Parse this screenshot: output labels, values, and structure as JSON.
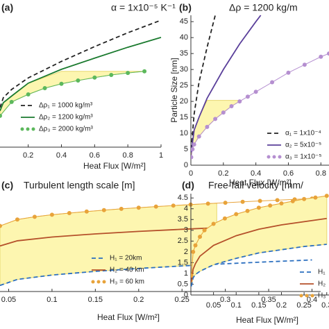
{
  "chart_data": [
    {
      "type": "line",
      "panel": "(a)",
      "title": "α = 1x10⁻⁵ K⁻¹",
      "x_label": "Heat Flux [W/m²]",
      "xlim": [
        0.03,
        1.0
      ],
      "ylim": [
        0,
        40
      ],
      "xticks": [
        0.2,
        0.4,
        0.6,
        0.8,
        1
      ],
      "yticks": [],
      "series": [
        {
          "name": "Δρ₁ = 1000 kg/m³",
          "color": "#222222",
          "style": "dashed",
          "x": [
            0.03,
            0.05,
            0.1,
            0.2,
            0.4,
            0.6,
            0.8,
            1.0
          ],
          "values": [
            12,
            15,
            17.5,
            21,
            26,
            30.5,
            34.7,
            38.5
          ]
        },
        {
          "name": "Δρ₂ = 1200 kg/m³",
          "color": "#1a7a2e",
          "style": "solid",
          "x": [
            0.03,
            0.05,
            0.1,
            0.2,
            0.4,
            0.6,
            0.8,
            1.0
          ],
          "values": [
            11,
            13.5,
            15.5,
            19.4,
            23.6,
            27,
            30.3,
            33.3
          ]
        },
        {
          "name": "Δρ₃ = 2000 kg/m³",
          "color": "#5cb85c",
          "style": "dotted",
          "x": [
            0.03,
            0.1,
            0.2,
            0.3,
            0.4,
            0.5,
            0.6,
            0.7,
            0.8,
            0.9
          ],
          "values": [
            9.5,
            13.7,
            16,
            17.9,
            19.2,
            20.2,
            21.1,
            21.9,
            22.5,
            23
          ]
        }
      ]
    },
    {
      "type": "line",
      "panel": "(b)",
      "title": "Δρ = 1200 kg/m",
      "x_label": "Heat Flux [W/m²]",
      "y_label": "Particle Size [nm]",
      "xlim": [
        0,
        0.85
      ],
      "ylim": [
        0,
        47
      ],
      "xticks": [
        0,
        0.2,
        0.4,
        0.6,
        0.8
      ],
      "yticks": [
        0,
        5,
        10,
        15,
        20,
        25,
        30,
        35,
        40,
        45
      ],
      "series": [
        {
          "name": "α₁ = 1x10⁻⁴",
          "color": "#222222",
          "style": "dashed",
          "x": [
            0.002,
            0.02,
            0.05,
            0.1,
            0.15
          ],
          "values": [
            5,
            16,
            26,
            37,
            47
          ]
        },
        {
          "name": "α₂ = 5x10⁻⁵",
          "color": "#5a3f9a",
          "style": "solid",
          "x": [
            0.002,
            0.02,
            0.05,
            0.1,
            0.2,
            0.3,
            0.4,
            0.43
          ],
          "values": [
            4,
            11,
            15,
            21,
            30,
            38,
            45,
            47
          ]
        },
        {
          "name": "α₃ = 1x10⁻⁵",
          "color": "#b58fd0",
          "style": "dotted",
          "x": [
            0.002,
            0.01,
            0.02,
            0.05,
            0.1,
            0.15,
            0.2,
            0.25,
            0.3,
            0.35,
            0.4,
            0.5,
            0.6,
            0.7,
            0.8,
            0.85
          ],
          "values": [
            2.5,
            5,
            6.5,
            9,
            12,
            14.5,
            16.5,
            18.5,
            20,
            21.5,
            23,
            26,
            29,
            31.5,
            34,
            35
          ]
        }
      ]
    },
    {
      "type": "line",
      "panel": "(c)",
      "title": "Turbulent length scale [m]",
      "x_label": "Heat Flux [W/m²]",
      "xlim": [
        0.04,
        0.41
      ],
      "ylim": [
        0,
        160
      ],
      "xticks": [
        0.05,
        0.1,
        0.15,
        0.2,
        0.25,
        0.3,
        0.35,
        0.4
      ],
      "yticks": [],
      "series": [
        {
          "name": "H₁ = 20km",
          "color": "#2a6ebf",
          "style": "dashed",
          "x": [
            0.04,
            0.06,
            0.1,
            0.15,
            0.2,
            0.25,
            0.3,
            0.35,
            0.4
          ],
          "values": [
            10,
            19.9,
            27.1,
            33.2,
            38,
            42.1,
            45.7,
            49,
            52
          ]
        },
        {
          "name": "H₂ = 40 km",
          "color": "#b5502a",
          "style": "solid",
          "x": [
            0.04,
            0.06,
            0.1,
            0.15,
            0.2,
            0.25,
            0.3,
            0.35,
            0.4
          ],
          "values": [
            75,
            83.5,
            89.7,
            94.9,
            99,
            102.5,
            105.6,
            108.4,
            111
          ]
        },
        {
          "name": "H₃ = 60 km",
          "color": "#e8a33a",
          "style": "dotted",
          "x": [
            0.04,
            0.06,
            0.08,
            0.1,
            0.12,
            0.14,
            0.16,
            0.18,
            0.2,
            0.22,
            0.24,
            0.26,
            0.28,
            0.3,
            0.32,
            0.34,
            0.36,
            0.38,
            0.4
          ],
          "values": [
            108,
            118.6,
            123,
            126.4,
            129.2,
            131.7,
            134,
            136.1,
            138,
            139.8,
            141.5,
            143.2,
            144.7,
            146.2,
            147.7,
            149.1,
            150.4,
            151.7,
            153
          ]
        }
      ]
    },
    {
      "type": "line",
      "panel": "(d)",
      "title": "Free-fall velocity [mm/",
      "x_label": "Heat Flux [W/m²]",
      "xlim": [
        0,
        0.305
      ],
      "ylim": [
        0,
        4.7
      ],
      "xticks": [
        0.05,
        0.1,
        0.15,
        0.2,
        0.25,
        0.3
      ],
      "yticks": [
        0,
        0.5,
        1,
        1.5,
        2,
        2.5,
        3,
        3.5,
        4,
        4.5
      ],
      "series": [
        {
          "name": "H₁",
          "color": "#2a6ebf",
          "style": "dashed",
          "x": [
            0.001,
            0.005,
            0.01,
            0.02,
            0.05,
            0.1,
            0.15,
            0.2,
            0.25,
            0.3
          ],
          "values": [
            0.4,
            0.8,
            0.95,
            1.1,
            1.4,
            1.7,
            1.95,
            2.1,
            2.25,
            2.35
          ]
        },
        {
          "name": "H₂",
          "color": "#b5502a",
          "style": "solid",
          "x": [
            0.001,
            0.005,
            0.01,
            0.02,
            0.05,
            0.1,
            0.15,
            0.2,
            0.25,
            0.3
          ],
          "values": [
            0.6,
            1.2,
            1.45,
            1.8,
            2.3,
            2.75,
            3.05,
            3.25,
            3.4,
            3.55
          ]
        },
        {
          "name": "H₃",
          "color": "#e8a33a",
          "style": "dotted",
          "x": [
            0.001,
            0.005,
            0.01,
            0.02,
            0.03,
            0.05,
            0.075,
            0.1,
            0.125,
            0.15,
            0.175,
            0.2,
            0.225,
            0.25,
            0.275,
            0.3
          ],
          "values": [
            0.9,
            2.0,
            2.3,
            2.7,
            3.0,
            3.3,
            3.55,
            3.75,
            3.9,
            4.05,
            4.15,
            4.25,
            4.35,
            4.45,
            4.52,
            4.6
          ]
        }
      ]
    }
  ]
}
